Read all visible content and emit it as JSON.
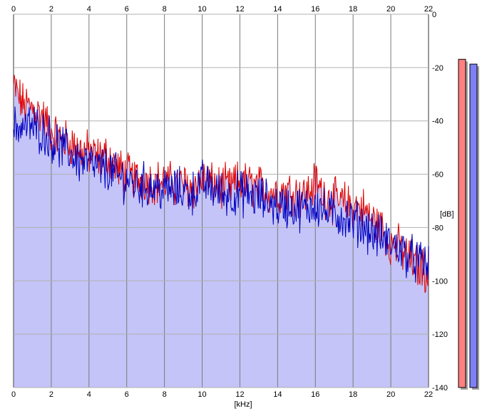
{
  "chart_data": {
    "type": "area",
    "xlabel": "[kHz]",
    "ylabel": "[dB]",
    "xlim": [
      0,
      22
    ],
    "ylim": [
      -140,
      0
    ],
    "x_ticks": [
      "0",
      "2",
      "4",
      "6",
      "8",
      "10",
      "12",
      "14",
      "16",
      "18",
      "20",
      "22"
    ],
    "y_ticks": [
      "0",
      "-20",
      "-40",
      "-60",
      "-80",
      "-100",
      "-120",
      "-140"
    ],
    "grid": true,
    "series": [
      {
        "color": "#e00000",
        "x": [
          0,
          0.5,
          1,
          1.5,
          2,
          2.5,
          3,
          3.5,
          4,
          4.5,
          5,
          5.5,
          6,
          6.5,
          7,
          7.5,
          8,
          8.5,
          9,
          9.5,
          10,
          10.5,
          11,
          11.5,
          12,
          12.5,
          13,
          13.5,
          14,
          14.5,
          15,
          15.5,
          16,
          16.5,
          17,
          17.5,
          18,
          18.5,
          19,
          19.5,
          20,
          20.5,
          21,
          21.5,
          22
        ],
        "values": [
          -27,
          -34,
          -35,
          -38,
          -44,
          -47,
          -48,
          -51,
          -52,
          -54,
          -53,
          -58,
          -60,
          -62,
          -62,
          -63,
          -63,
          -64,
          -64,
          -65,
          -62,
          -64,
          -65,
          -65,
          -63,
          -64,
          -65,
          -66,
          -67,
          -66,
          -67,
          -68,
          -63,
          -68,
          -70,
          -71,
          -72,
          -73,
          -77,
          -80,
          -86,
          -88,
          -92,
          -95,
          -96
        ]
      },
      {
        "color": "#0000c0",
        "x": [
          0,
          0.5,
          1,
          1.5,
          2,
          2.5,
          3,
          3.5,
          4,
          4.5,
          5,
          5.5,
          6,
          6.5,
          7,
          7.5,
          8,
          8.5,
          9,
          9.5,
          10,
          10.5,
          11,
          11.5,
          12,
          12.5,
          13,
          13.5,
          14,
          14.5,
          15,
          15.5,
          16,
          16.5,
          17,
          17.5,
          18,
          18.5,
          19,
          19.5,
          20,
          20.5,
          21,
          21.5,
          22
        ],
        "values": [
          -42,
          -42,
          -42,
          -44,
          -47,
          -50,
          -52,
          -55,
          -56,
          -58,
          -58,
          -61,
          -62,
          -64,
          -64,
          -65,
          -66,
          -66,
          -66,
          -67,
          -63,
          -65,
          -67,
          -68,
          -67,
          -68,
          -69,
          -70,
          -72,
          -72,
          -73,
          -73,
          -71,
          -74,
          -75,
          -76,
          -78,
          -79,
          -82,
          -84,
          -86,
          -88,
          -91,
          -93,
          -94
        ]
      }
    ],
    "level_meters": [
      {
        "color": "#ff8080",
        "level": 0.923
      },
      {
        "color": "#7f7ff7",
        "level": 0.909
      }
    ]
  }
}
